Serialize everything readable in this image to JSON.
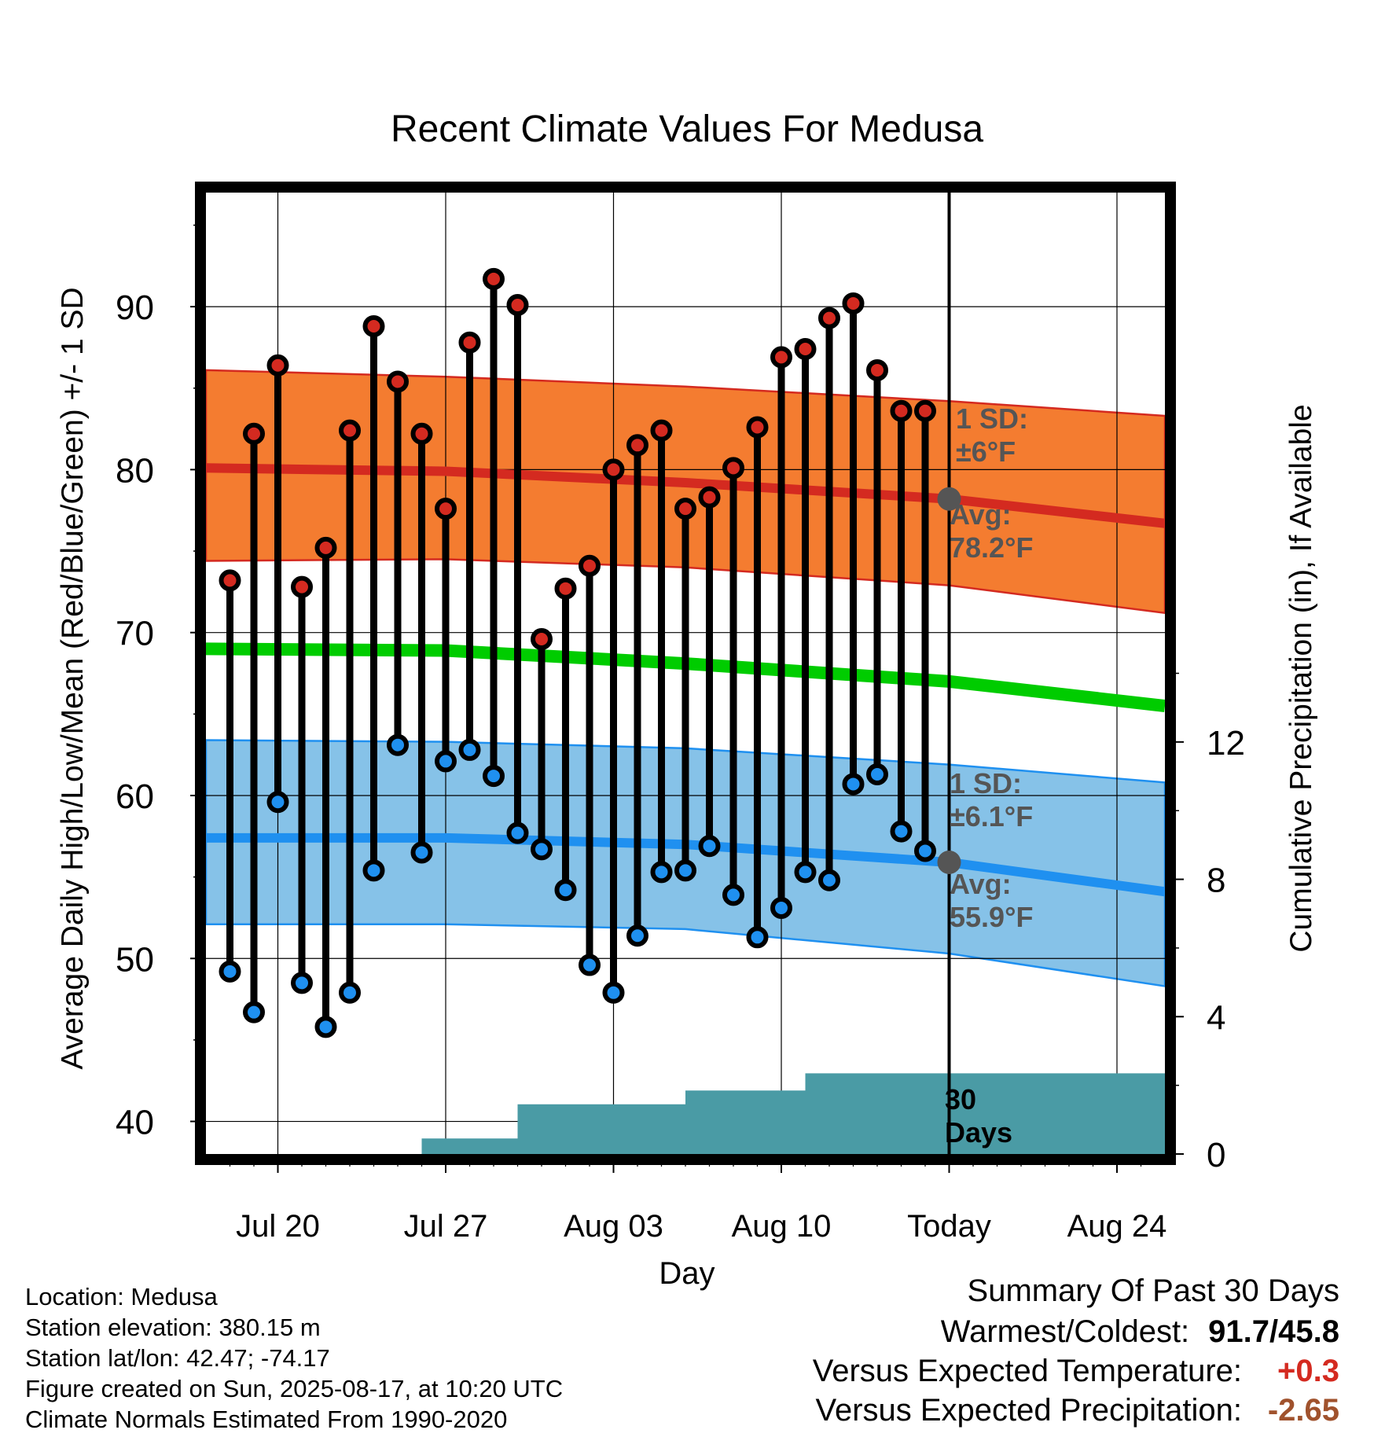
{
  "chart_data": {
    "type": "line",
    "title": "Recent Climate Values For Medusa",
    "xlabel": "Day",
    "ylabel": "Average Daily High/Low/Mean (Red/Blue/Green) +/- 1 SD",
    "y2label": "Cumulative Precipitation (in), If Available",
    "ylim": [
      38,
      97
    ],
    "y2lim": [
      0,
      28
    ],
    "x_tick_labels": [
      "Jul 20",
      "Jul 27",
      "Aug 03",
      "Aug 10",
      "Today",
      "Aug 24"
    ],
    "x_tick_dates": [
      "2025-07-20",
      "2025-07-27",
      "2025-08-03",
      "2025-08-10",
      "2025-08-17",
      "2025-08-24"
    ],
    "y_ticks": [
      40,
      50,
      60,
      70,
      80,
      90
    ],
    "y2_ticks": [
      0,
      4,
      8,
      12
    ],
    "x_range": [
      "2025-07-17",
      "2025-08-26"
    ],
    "daily": {
      "dates": [
        "2025-07-18",
        "2025-07-19",
        "2025-07-20",
        "2025-07-21",
        "2025-07-22",
        "2025-07-23",
        "2025-07-24",
        "2025-07-25",
        "2025-07-26",
        "2025-07-27",
        "2025-07-28",
        "2025-07-29",
        "2025-07-30",
        "2025-07-31",
        "2025-08-01",
        "2025-08-02",
        "2025-08-03",
        "2025-08-04",
        "2025-08-05",
        "2025-08-06",
        "2025-08-07",
        "2025-08-08",
        "2025-08-09",
        "2025-08-10",
        "2025-08-11",
        "2025-08-12",
        "2025-08-13",
        "2025-08-14",
        "2025-08-15",
        "2025-08-16"
      ],
      "highs": [
        73.2,
        82.2,
        86.4,
        72.8,
        75.2,
        82.4,
        88.8,
        85.4,
        82.2,
        77.6,
        87.8,
        91.7,
        90.1,
        69.6,
        72.7,
        74.1,
        80.0,
        81.5,
        82.4,
        77.6,
        78.3,
        80.1,
        82.6,
        86.9,
        87.4,
        89.3,
        90.2,
        86.1,
        83.6,
        83.6
      ],
      "lows": [
        49.2,
        46.7,
        59.6,
        48.5,
        45.8,
        47.9,
        55.4,
        63.1,
        56.5,
        62.1,
        62.8,
        61.2,
        57.7,
        56.7,
        54.2,
        49.6,
        47.9,
        51.4,
        55.3,
        55.4,
        56.9,
        53.9,
        51.3,
        53.1,
        55.3,
        54.8,
        60.7,
        61.3,
        57.8,
        56.6
      ]
    },
    "normals": {
      "dates": [
        "2025-07-17",
        "2025-07-27",
        "2025-08-06",
        "2025-08-17",
        "2025-08-26"
      ],
      "avg_high": [
        80.1,
        79.9,
        79.2,
        78.2,
        76.7
      ],
      "high_upper": [
        86.1,
        85.7,
        85.1,
        84.2,
        83.3
      ],
      "high_lower": [
        74.4,
        74.5,
        74.0,
        72.9,
        71.2
      ],
      "mean": [
        69.0,
        68.9,
        68.1,
        67.0,
        65.5
      ],
      "avg_low": [
        57.4,
        57.4,
        57.0,
        55.9,
        54.1
      ],
      "low_upper": [
        63.4,
        63.3,
        62.9,
        61.9,
        60.8
      ],
      "low_lower": [
        52.1,
        52.1,
        51.8,
        50.3,
        48.3
      ]
    },
    "precip_cumulative": {
      "dates": [
        "2025-07-17",
        "2025-07-26",
        "2025-07-26",
        "2025-07-30",
        "2025-07-30",
        "2025-08-06",
        "2025-08-06",
        "2025-08-11",
        "2025-08-11",
        "2025-08-26"
      ],
      "values": [
        0,
        0,
        0.45,
        0.45,
        1.45,
        1.45,
        1.85,
        1.85,
        2.35,
        2.35
      ]
    },
    "annotations": {
      "high_sd": "1 SD:\n±6°F",
      "high_avg": "Avg:\n78.2°F",
      "low_sd": "1 SD:\n±6.1°F",
      "low_avg": "Avg:\n55.9°F",
      "days_label": "30\nDays"
    },
    "colors": {
      "high_band": "#f47c30",
      "high_line": "#d42a20",
      "mean_line": "#00cc00",
      "low_band": "#86c2e8",
      "low_line": "#1f90f0",
      "precip_fill": "#4a9ba5",
      "high_dot": "#d42a20",
      "low_dot": "#1f90f0",
      "today_dot": "#555555",
      "annotation_text": "#555555"
    }
  },
  "info": {
    "location": "Location: Medusa",
    "elevation": "Station elevation: 380.15 m",
    "latlon": "Station lat/lon: 42.47; -74.17",
    "created": "Figure created on Sun, 2025-08-17, at 10:20 UTC",
    "normals": "Climate Normals Estimated From 1990-2020"
  },
  "summary": {
    "title": "Summary Of Past 30 Days",
    "warm_label": "Warmest/Coldest:",
    "warm_value": "91.7/45.8",
    "temp_label": "Versus Expected Temperature:",
    "temp_value": "+0.3",
    "temp_color": "#d42a20",
    "precip_label": "Versus Expected Precipitation:",
    "precip_value": "-2.65",
    "precip_color": "#a0522d"
  }
}
